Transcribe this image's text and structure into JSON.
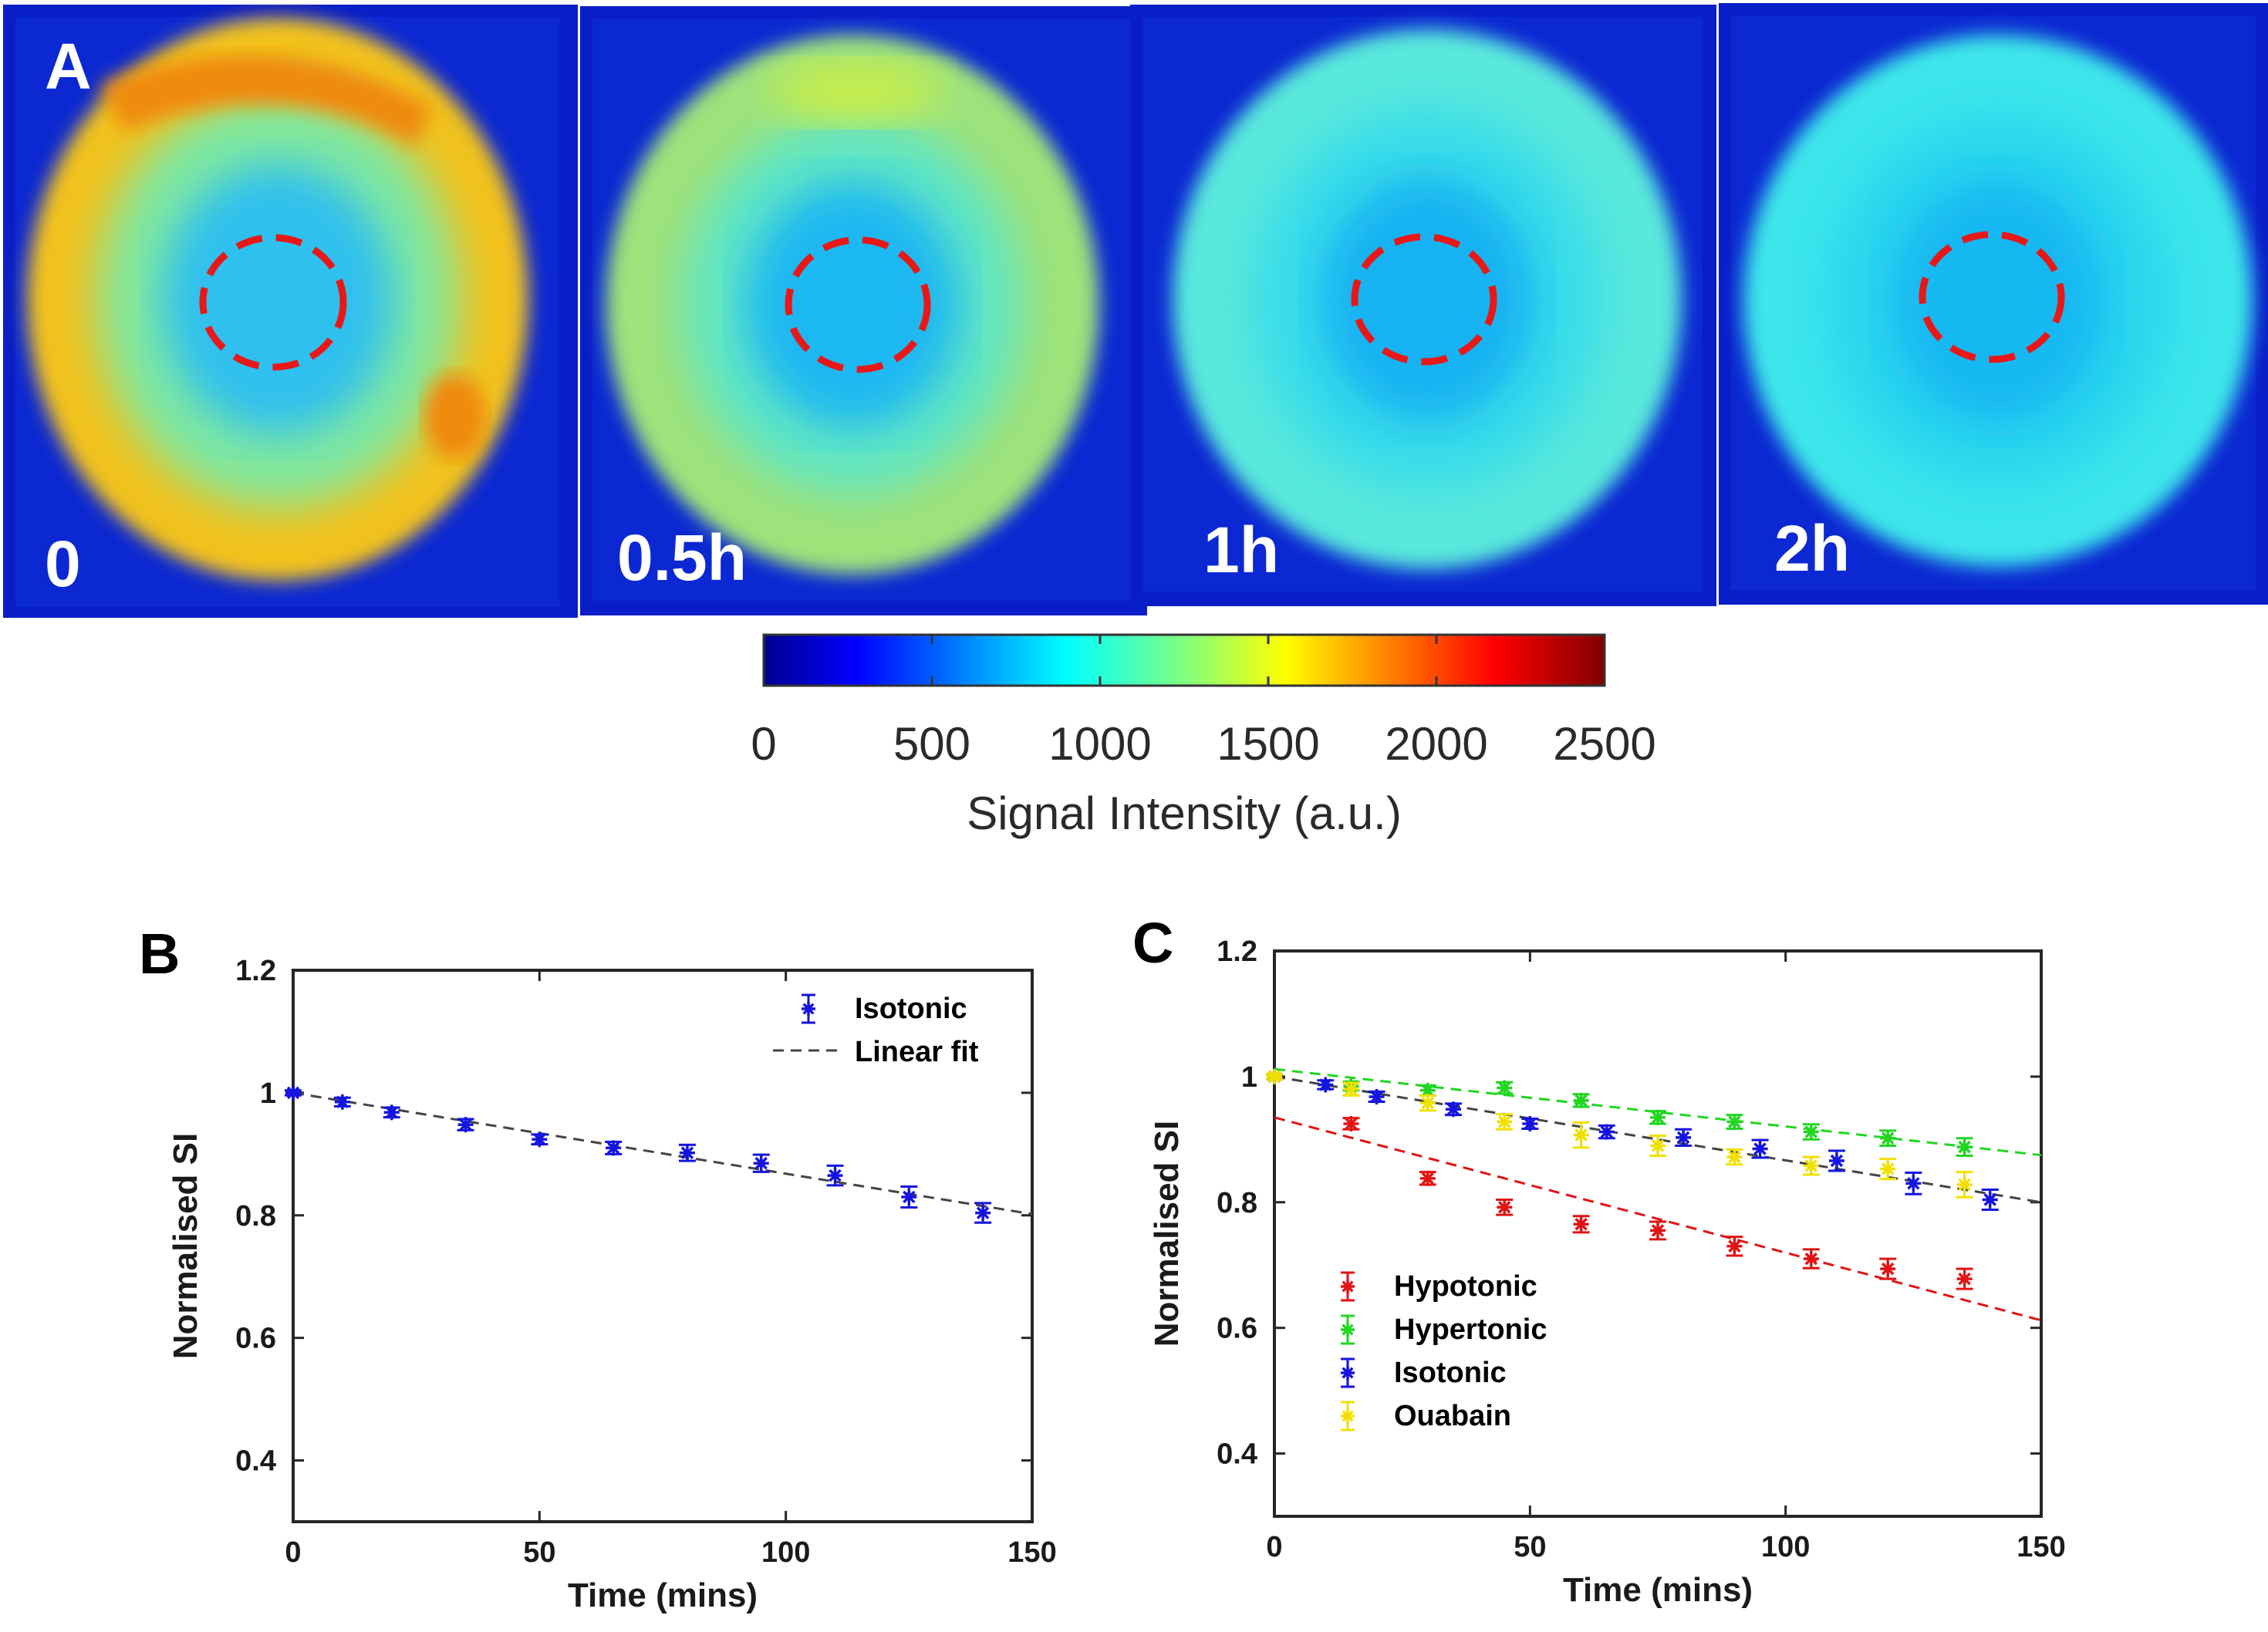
{
  "panel_a": {
    "label": "A",
    "images": [
      {
        "time_label": "0",
        "ring_color": "#f2c21a",
        "inner_color": "#2ec0ef",
        "hot_color": "#ef8a10"
      },
      {
        "time_label": "0.5h",
        "ring_color": "#9ee27a",
        "inner_color": "#1eb8f2",
        "hot_color": "#c9ee4a"
      },
      {
        "time_label": "1h",
        "ring_color": "#58e8dc",
        "inner_color": "#12b2f2",
        "hot_color": "#70eed0"
      },
      {
        "time_label": "2h",
        "ring_color": "#3ee6ea",
        "inner_color": "#16b8f2",
        "hot_color": "#56ecdc"
      }
    ],
    "colorbar": {
      "ticks": [
        "0",
        "500",
        "1000",
        "1500",
        "2000",
        "2500"
      ],
      "label": "Signal Intensity (a.u.)"
    }
  },
  "chart_data": [
    {
      "panel": "B",
      "type": "scatter",
      "xlabel": "Time (mins)",
      "ylabel": "Normalised SI",
      "xlim": [
        0,
        150
      ],
      "ylim": [
        0.3,
        1.2
      ],
      "xticks": [
        "0",
        "50",
        "100",
        "150"
      ],
      "yticks": [
        "0.4",
        "0.6",
        "0.8",
        "1",
        "1.2"
      ],
      "series": [
        {
          "name": "Isotonic",
          "color": "#1414e0",
          "x": [
            0,
            10,
            20,
            35,
            50,
            65,
            80,
            95,
            110,
            125,
            140
          ],
          "y": [
            1.0,
            0.985,
            0.968,
            0.948,
            0.924,
            0.91,
            0.902,
            0.885,
            0.865,
            0.83,
            0.804
          ],
          "err": [
            0.004,
            0.007,
            0.008,
            0.009,
            0.008,
            0.01,
            0.013,
            0.014,
            0.016,
            0.017,
            0.016
          ]
        }
      ],
      "fits": [
        {
          "name": "Linear fit",
          "color": "#444444",
          "x": [
            0,
            150
          ],
          "y": [
            1.0,
            0.802
          ]
        }
      ],
      "legend": {
        "placement": "top-right",
        "entries": [
          "Isotonic",
          "Linear fit"
        ]
      }
    },
    {
      "panel": "C",
      "type": "scatter",
      "xlabel": "Time (mins)",
      "ylabel": "Normalised SI",
      "xlim": [
        0,
        150
      ],
      "ylim": [
        0.3,
        1.2
      ],
      "xticks": [
        "0",
        "50",
        "100",
        "150"
      ],
      "yticks": [
        "0.4",
        "0.6",
        "0.8",
        "1",
        "1.2"
      ],
      "series": [
        {
          "name": "Hypotonic",
          "color": "#e01414",
          "x": [
            0,
            15,
            30,
            45,
            60,
            75,
            90,
            105,
            120,
            135
          ],
          "y": [
            1.0,
            0.925,
            0.838,
            0.792,
            0.765,
            0.755,
            0.73,
            0.71,
            0.694,
            0.678
          ],
          "err": [
            0.004,
            0.009,
            0.01,
            0.012,
            0.013,
            0.014,
            0.015,
            0.015,
            0.016,
            0.016
          ]
        },
        {
          "name": "Hypertonic",
          "color": "#22d622",
          "x": [
            0,
            15,
            30,
            45,
            60,
            75,
            90,
            105,
            120,
            135
          ],
          "y": [
            1.0,
            0.985,
            0.978,
            0.982,
            0.962,
            0.935,
            0.928,
            0.912,
            0.902,
            0.888
          ],
          "err": [
            0.004,
            0.007,
            0.008,
            0.009,
            0.01,
            0.01,
            0.011,
            0.012,
            0.012,
            0.014
          ]
        },
        {
          "name": "Isotonic",
          "color": "#1414e0",
          "x": [
            0,
            10,
            20,
            35,
            50,
            65,
            80,
            95,
            110,
            125,
            140
          ],
          "y": [
            1.0,
            0.987,
            0.968,
            0.948,
            0.925,
            0.912,
            0.903,
            0.885,
            0.866,
            0.83,
            0.804
          ],
          "err": [
            0.004,
            0.007,
            0.008,
            0.009,
            0.008,
            0.01,
            0.013,
            0.014,
            0.016,
            0.017,
            0.016
          ]
        },
        {
          "name": "Ouabain",
          "color": "#f0e000",
          "x": [
            0,
            15,
            30,
            45,
            60,
            75,
            90,
            105,
            120,
            135
          ],
          "y": [
            1.0,
            0.98,
            0.958,
            0.928,
            0.907,
            0.89,
            0.872,
            0.858,
            0.853,
            0.828
          ],
          "err": [
            0.004,
            0.01,
            0.012,
            0.012,
            0.02,
            0.016,
            0.012,
            0.014,
            0.016,
            0.02
          ]
        }
      ],
      "fits": [
        {
          "name": "Hypotonic fit",
          "color": "#e01414",
          "x": [
            0,
            150
          ],
          "y": [
            0.935,
            0.612
          ]
        },
        {
          "name": "Hypertonic fit",
          "color": "#22d622",
          "x": [
            0,
            150
          ],
          "y": [
            1.012,
            0.875
          ]
        },
        {
          "name": "Isotonic fit",
          "color": "#444444",
          "x": [
            0,
            150
          ],
          "y": [
            1.0,
            0.8
          ]
        }
      ],
      "legend": {
        "placement": "bottom-left",
        "entries": [
          "Hypotonic",
          "Hypertonic",
          "Isotonic",
          "Ouabain"
        ]
      }
    }
  ]
}
